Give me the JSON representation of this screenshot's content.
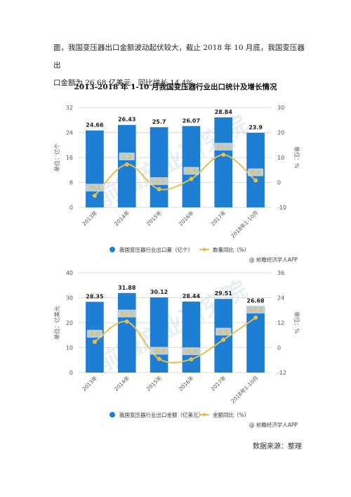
{
  "paragraph": {
    "line1": "面，我国变压器出口金额波动起伏较大，截止 2018 年 10 月底，我国变压器出",
    "line2": "口金额为 26.68 亿美元，同比增长 14.4%。"
  },
  "figure_title": "2013-2018 年 1-10 月我国变压器行业出口统计及增长情况",
  "credit": "@ 前瞻经济学人APP",
  "watermark": "前瞻产业研究院",
  "source_note": "数据来源：整理",
  "colors": {
    "bar": "#1e7ed3",
    "line": "#e3c050",
    "grid": "#cfcfcf",
    "label_bg": "#d9d9d9"
  },
  "chart_data": [
    {
      "type": "bar",
      "categories": [
        "2013年",
        "2014年",
        "2015年",
        "2016年",
        "2017年",
        "2018年1-10月"
      ],
      "series": [
        {
          "name": "我国变压器行业出口量（亿个）",
          "type": "bar",
          "axis": "left",
          "values": [
            24.66,
            26.43,
            25.7,
            26.07,
            28.84,
            23.9
          ]
        },
        {
          "name": "数量同比（%）",
          "type": "line",
          "axis": "right",
          "values": [
            -5.3,
            7.2,
            -2.7,
            1.4,
            11.1,
            0.8
          ]
        }
      ],
      "ylabel": "单位：亿个",
      "y2label": "单位：%",
      "ylim": [
        0,
        32
      ],
      "yticks": [
        0,
        8,
        16,
        24,
        32
      ],
      "y2lim": [
        -10,
        30
      ],
      "y2ticks": [
        -10,
        0,
        10,
        20,
        30
      ],
      "legend_position": "bottom"
    },
    {
      "type": "bar",
      "categories": [
        "2013年",
        "2014年",
        "2015年",
        "2016年",
        "2017年",
        "2018年1-10月"
      ],
      "series": [
        {
          "name": "我国变压器行业出口金额（亿美元）",
          "type": "bar",
          "axis": "left",
          "values": [
            28.35,
            31.88,
            30.12,
            28.44,
            29.51,
            26.68
          ]
        },
        {
          "name": "金额同比（%）",
          "type": "line",
          "axis": "right",
          "values": [
            2.8,
            12.5,
            -5.4,
            -5.6,
            3.8,
            14.4
          ]
        }
      ],
      "ylabel": "单位：亿美元",
      "y2label": "单位：%",
      "ylim": [
        0,
        40
      ],
      "yticks": [
        0,
        10,
        20,
        30,
        40
      ],
      "y2lim": [
        -12,
        36
      ],
      "y2ticks": [
        -12,
        0,
        12,
        24,
        36
      ],
      "legend_position": "bottom"
    }
  ]
}
